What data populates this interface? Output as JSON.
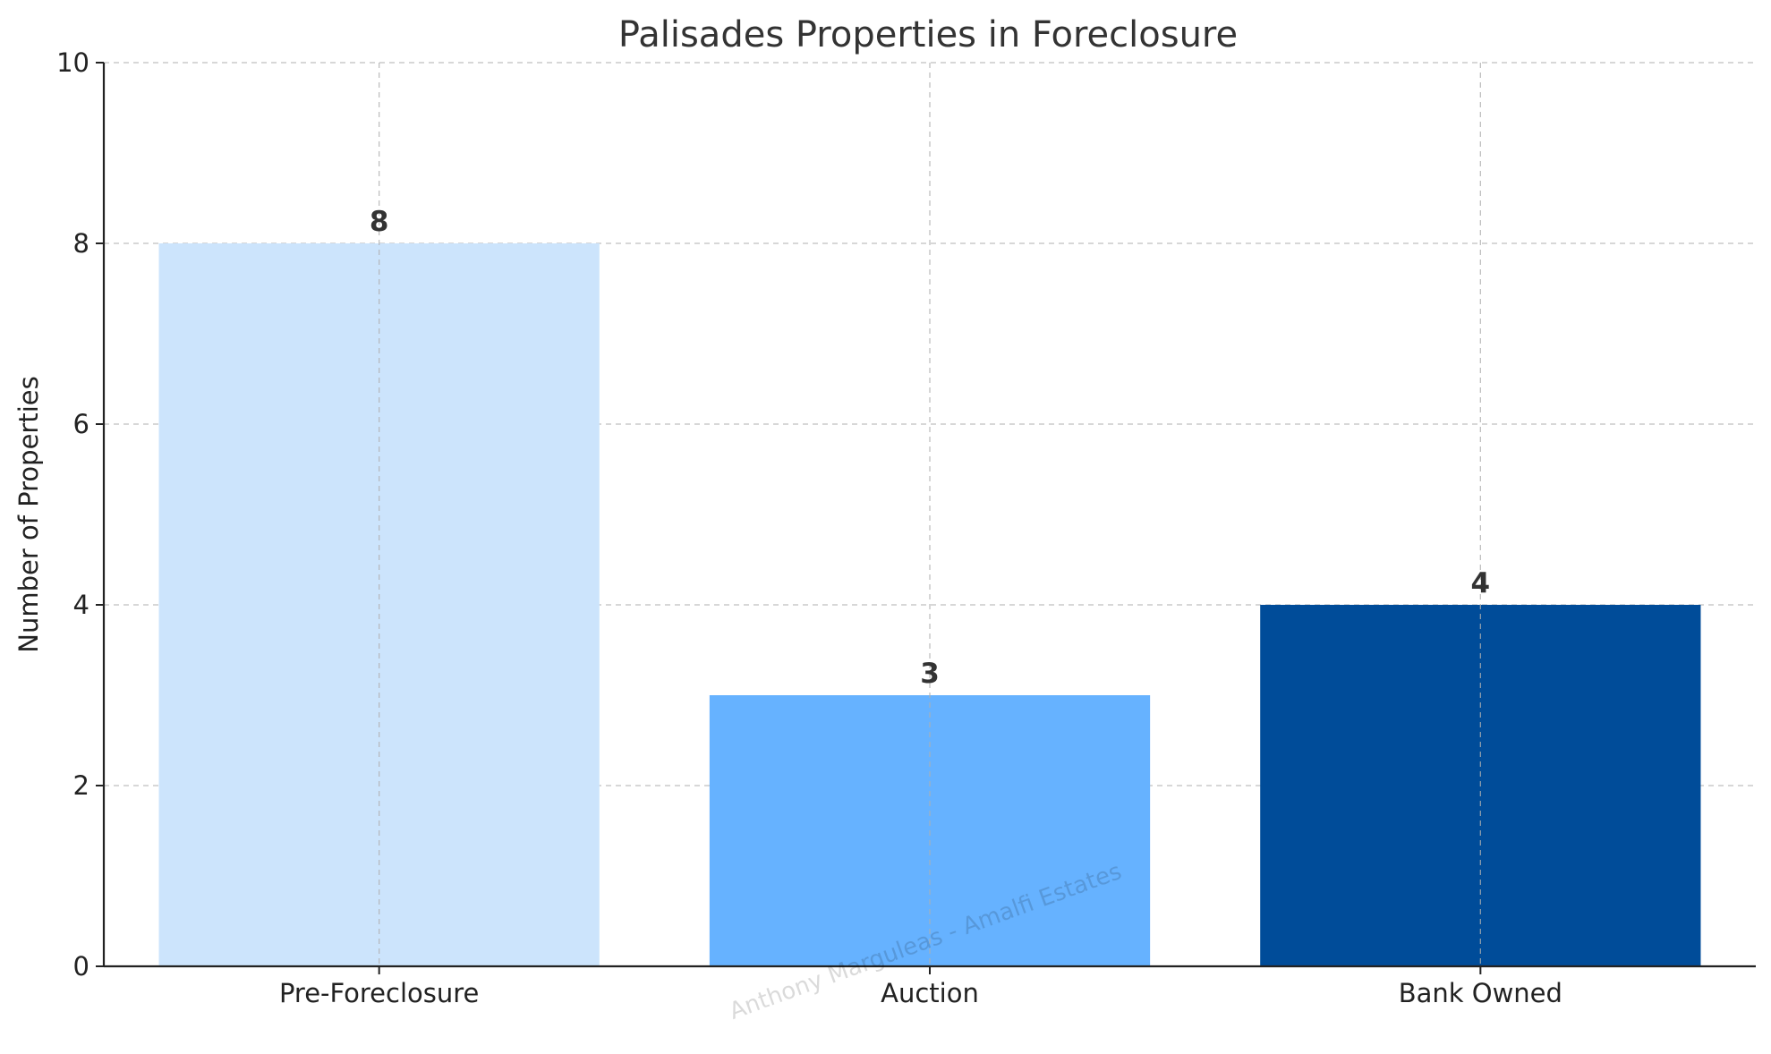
{
  "chart_data": {
    "type": "bar",
    "title": "Palisades Properties in Foreclosure",
    "xlabel": "",
    "ylabel": "Number of Properties",
    "categories": [
      "Pre-Foreclosure",
      "Auction",
      "Bank Owned"
    ],
    "values": [
      8,
      3,
      4
    ],
    "data_labels": [
      "8",
      "3",
      "4"
    ],
    "colors": [
      "#cce4fc",
      "#66b2ff",
      "#004c99"
    ],
    "ylim": [
      0,
      10
    ],
    "yticks": [
      0,
      2,
      4,
      6,
      8,
      10
    ],
    "ytick_labels": [
      "0",
      "2",
      "4",
      "6",
      "8",
      "10"
    ],
    "grid": true,
    "legend": "none"
  },
  "watermark": "Anthony Marguleas - Amalfi Estates"
}
